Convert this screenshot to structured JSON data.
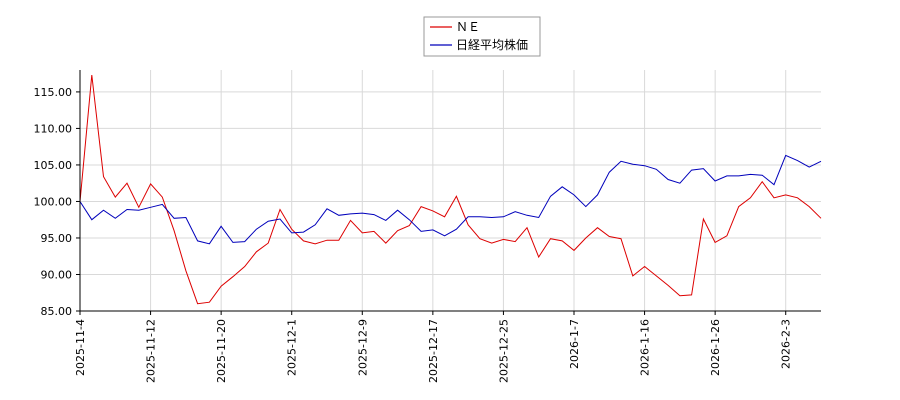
{
  "chart_data": {
    "type": "line",
    "title": "",
    "xlabel": "",
    "ylabel": "",
    "ylim": [
      85.0,
      118.0
    ],
    "yticks": [
      "85.00",
      "90.00",
      "95.00",
      "100.00",
      "105.00",
      "110.00",
      "115.00"
    ],
    "xticks": [
      "2025-11-4",
      "2025-11-12",
      "2025-11-20",
      "2025-12-1",
      "2025-12-9",
      "2025-12-17",
      "2025-12-25",
      "2026-1-7",
      "2026-1-16",
      "2026-1-26",
      "2026-2-3"
    ],
    "xtick_index": [
      0,
      6,
      12,
      18,
      24,
      30,
      36,
      42,
      48,
      54,
      60
    ],
    "grid": true,
    "legend_position": "top-center",
    "series": [
      {
        "name": "ＮＥ",
        "color": "#dd0000",
        "values": [
          100.0,
          117.3,
          103.4,
          100.6,
          102.5,
          99.2,
          102.4,
          100.6,
          96.0,
          90.5,
          86.0,
          86.2,
          88.4,
          89.7,
          91.1,
          93.1,
          94.3,
          98.9,
          96.2,
          94.6,
          94.2,
          94.7,
          94.7,
          97.4,
          95.7,
          95.9,
          94.3,
          96.0,
          96.7,
          99.3,
          98.7,
          97.9,
          100.7,
          96.8,
          94.9,
          94.3,
          94.8,
          94.5,
          96.4,
          92.4,
          94.9,
          94.6,
          93.3,
          95.0,
          96.4,
          95.2,
          94.9,
          89.8,
          91.1,
          89.8,
          88.5,
          87.1,
          87.2,
          97.6,
          94.4,
          95.3,
          99.3,
          100.5,
          102.7,
          100.5,
          100.9,
          100.5,
          99.3,
          97.7
        ]
      },
      {
        "name": "日経平均株価",
        "color": "#0000bb",
        "values": [
          100.0,
          97.5,
          98.8,
          97.7,
          98.9,
          98.8,
          99.2,
          99.6,
          97.7,
          97.8,
          94.6,
          94.2,
          96.6,
          94.4,
          94.5,
          96.2,
          97.3,
          97.6,
          95.7,
          95.8,
          96.8,
          99.0,
          98.1,
          98.3,
          98.4,
          98.2,
          97.4,
          98.8,
          97.5,
          95.9,
          96.1,
          95.3,
          96.2,
          97.9,
          97.9,
          97.8,
          97.9,
          98.6,
          98.1,
          97.8,
          100.7,
          102.0,
          100.9,
          99.3,
          100.9,
          104.0,
          105.5,
          105.1,
          104.9,
          104.4,
          103.0,
          102.5,
          104.3,
          104.5,
          102.8,
          103.5,
          103.5,
          103.7,
          103.6,
          102.3,
          106.3,
          105.6,
          104.7,
          105.5
        ]
      }
    ]
  }
}
